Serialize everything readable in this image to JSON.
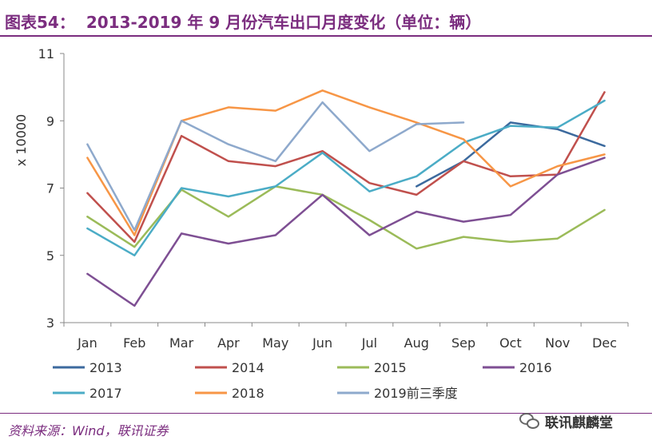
{
  "header": {
    "prefix": "图表54：",
    "text": "2013-2019 年 9 月份汽车出口月度变化（单位：辆）"
  },
  "source": "资料来源：Wind，联讯证券",
  "watermark": "联讯麒麟堂",
  "chart_data": {
    "type": "line",
    "title": "图表54： 2013-2019 年 9 月份汽车出口月度变化（单位：辆）",
    "ylabel": "x 10000",
    "xlabel": "",
    "categories": [
      "Jan",
      "Feb",
      "Mar",
      "Apr",
      "May",
      "Jun",
      "Jul",
      "Aug",
      "Sep",
      "Oct",
      "Nov",
      "Dec"
    ],
    "ylim": [
      3,
      11
    ],
    "yticks": [
      3,
      5,
      7,
      9,
      11
    ],
    "grid": false,
    "legend_position": "bottom",
    "series": [
      {
        "name": "2013",
        "color": "#3c6a9e",
        "values": [
          null,
          null,
          null,
          null,
          null,
          null,
          null,
          7.05,
          7.8,
          8.95,
          8.75,
          8.25
        ]
      },
      {
        "name": "2014",
        "color": "#c0504d",
        "values": [
          6.85,
          5.4,
          8.55,
          7.8,
          7.65,
          8.1,
          7.15,
          6.8,
          7.8,
          7.35,
          7.4,
          9.85
        ]
      },
      {
        "name": "2015",
        "color": "#9bbb59",
        "values": [
          6.15,
          5.25,
          6.95,
          6.15,
          7.05,
          6.8,
          6.05,
          5.2,
          5.55,
          5.4,
          5.5,
          6.35
        ]
      },
      {
        "name": "2016",
        "color": "#7e4f93",
        "values": [
          4.45,
          3.5,
          5.65,
          5.35,
          5.6,
          6.8,
          5.6,
          6.3,
          6.0,
          6.2,
          7.4,
          7.9
        ]
      },
      {
        "name": "2017",
        "color": "#4bacc6",
        "values": [
          5.8,
          5.0,
          7.0,
          6.75,
          7.05,
          8.05,
          6.9,
          7.35,
          8.35,
          8.85,
          8.8,
          9.6
        ]
      },
      {
        "name": "2018",
        "color": "#f79646",
        "values": [
          7.9,
          5.6,
          9.0,
          9.4,
          9.3,
          9.9,
          9.4,
          8.95,
          8.45,
          7.05,
          7.65,
          8.0
        ]
      },
      {
        "name": "2019前三季度",
        "color": "#8ea9cc",
        "values": [
          8.3,
          5.75,
          9.0,
          8.3,
          7.8,
          9.55,
          8.1,
          8.9,
          8.95,
          null,
          null,
          null
        ]
      }
    ]
  }
}
